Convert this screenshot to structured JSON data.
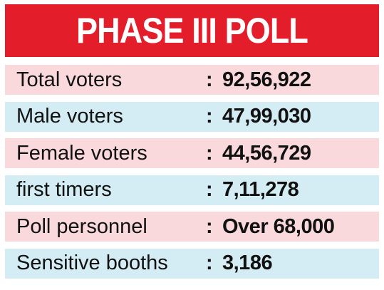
{
  "title": "PHASE III POLL",
  "separator": ":",
  "colors": {
    "banner": "#e41d2a",
    "row_pink": "#f9d9dc",
    "row_blue": "#d4ecf3"
  },
  "rows": [
    {
      "label": "Total voters",
      "value": "92,56,922"
    },
    {
      "label": "Male voters",
      "value": "47,99,030"
    },
    {
      "label": "Female voters",
      "value": "44,56,729"
    },
    {
      "label": "first timers",
      "value": "7,11,278"
    },
    {
      "label": "Poll personnel",
      "value": "Over 68,000"
    },
    {
      "label": "Sensitive booths",
      "value": "3,186"
    }
  ]
}
